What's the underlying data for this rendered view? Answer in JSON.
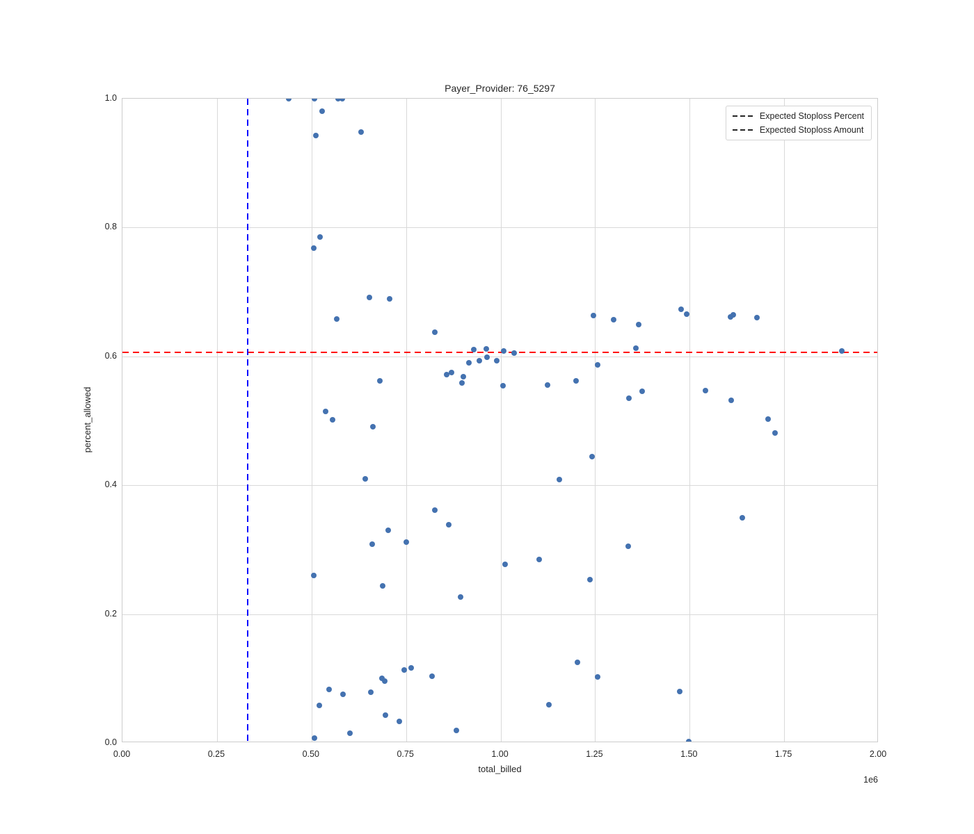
{
  "figure": {
    "title": "Payer_Provider: 76_5297"
  },
  "chart_data": {
    "type": "scatter",
    "title": "Payer_Provider: 76_5297",
    "xlabel": "total_billed",
    "ylabel": "percent_allowed",
    "x_offset_label": "1e6",
    "x_units": "1e6",
    "xlim": [
      0,
      2
    ],
    "ylim": [
      0,
      1
    ],
    "grid": true,
    "x_ticks": [
      "0.00",
      "0.25",
      "0.50",
      "0.75",
      "1.00",
      "1.25",
      "1.50",
      "1.75",
      "2.00"
    ],
    "x_tick_values": [
      0,
      0.25,
      0.5,
      0.75,
      1.0,
      1.25,
      1.5,
      1.75,
      2.0
    ],
    "y_ticks": [
      "0.0",
      "0.2",
      "0.4",
      "0.6",
      "0.8",
      "1.0"
    ],
    "y_tick_values": [
      0,
      0.2,
      0.4,
      0.6,
      0.8,
      1.0
    ],
    "point_color": "#4472b0",
    "points": [
      [
        0.44,
        1.0
      ],
      [
        0.508,
        1.0
      ],
      [
        0.57,
        1.0
      ],
      [
        0.582,
        1.0
      ],
      [
        0.528,
        0.981
      ],
      [
        0.512,
        0.943
      ],
      [
        0.632,
        0.948
      ],
      [
        0.523,
        0.785
      ],
      [
        0.506,
        0.768
      ],
      [
        0.654,
        0.692
      ],
      [
        0.707,
        0.689
      ],
      [
        0.567,
        0.658
      ],
      [
        0.826,
        0.638
      ],
      [
        1.245,
        0.663
      ],
      [
        1.299,
        0.657
      ],
      [
        1.366,
        0.649
      ],
      [
        1.477,
        0.673
      ],
      [
        1.492,
        0.666
      ],
      [
        1.609,
        0.661
      ],
      [
        1.616,
        0.665
      ],
      [
        1.678,
        0.66
      ],
      [
        1.357,
        0.613
      ],
      [
        1.903,
        0.608
      ],
      [
        0.93,
        0.611
      ],
      [
        0.962,
        0.612
      ],
      [
        0.965,
        0.599
      ],
      [
        1.009,
        0.608
      ],
      [
        1.035,
        0.605
      ],
      [
        0.917,
        0.59
      ],
      [
        0.944,
        0.593
      ],
      [
        0.989,
        0.593
      ],
      [
        0.857,
        0.572
      ],
      [
        0.87,
        0.575
      ],
      [
        0.901,
        0.569
      ],
      [
        0.897,
        0.559
      ],
      [
        1.006,
        0.554
      ],
      [
        1.124,
        0.556
      ],
      [
        1.257,
        0.587
      ],
      [
        1.199,
        0.562
      ],
      [
        0.68,
        0.562
      ],
      [
        0.537,
        0.515
      ],
      [
        0.555,
        0.502
      ],
      [
        0.662,
        0.491
      ],
      [
        0.642,
        0.41
      ],
      [
        1.156,
        0.409
      ],
      [
        1.242,
        0.444
      ],
      [
        1.34,
        0.535
      ],
      [
        1.375,
        0.546
      ],
      [
        1.541,
        0.547
      ],
      [
        1.61,
        0.532
      ],
      [
        1.708,
        0.503
      ],
      [
        1.725,
        0.481
      ],
      [
        1.639,
        0.35
      ],
      [
        0.826,
        0.361
      ],
      [
        0.863,
        0.339
      ],
      [
        0.702,
        0.33
      ],
      [
        0.66,
        0.308
      ],
      [
        0.75,
        0.312
      ],
      [
        0.506,
        0.26
      ],
      [
        0.688,
        0.244
      ],
      [
        0.895,
        0.227
      ],
      [
        1.012,
        0.277
      ],
      [
        1.103,
        0.285
      ],
      [
        1.237,
        0.254
      ],
      [
        1.337,
        0.305
      ],
      [
        0.763,
        0.117
      ],
      [
        0.745,
        0.113
      ],
      [
        0.819,
        0.104
      ],
      [
        0.686,
        0.1
      ],
      [
        0.693,
        0.096
      ],
      [
        0.546,
        0.083
      ],
      [
        0.584,
        0.075
      ],
      [
        0.656,
        0.079
      ],
      [
        0.521,
        0.058
      ],
      [
        0.695,
        0.043
      ],
      [
        0.732,
        0.033
      ],
      [
        0.601,
        0.015
      ],
      [
        0.507,
        0.008
      ],
      [
        0.883,
        0.019
      ],
      [
        1.204,
        0.125
      ],
      [
        1.257,
        0.102
      ],
      [
        1.127,
        0.059
      ],
      [
        1.474,
        0.08
      ],
      [
        1.498,
        0.002
      ]
    ],
    "reference_lines": [
      {
        "label": "Expected Stoploss Percent",
        "orientation": "horizontal",
        "value": 0.606,
        "color": "#ff0000",
        "style": "dashed"
      },
      {
        "label": "Expected Stoploss Amount",
        "orientation": "vertical",
        "value": 0.331,
        "value_absolute": 331000,
        "color": "#0000ff",
        "style": "dashed"
      }
    ],
    "legend": {
      "position": "upper right",
      "entries": [
        {
          "label": "Expected Stoploss Percent",
          "color": "#ff0000"
        },
        {
          "label": "Expected Stoploss Amount",
          "color": "#0000ff"
        }
      ]
    }
  }
}
